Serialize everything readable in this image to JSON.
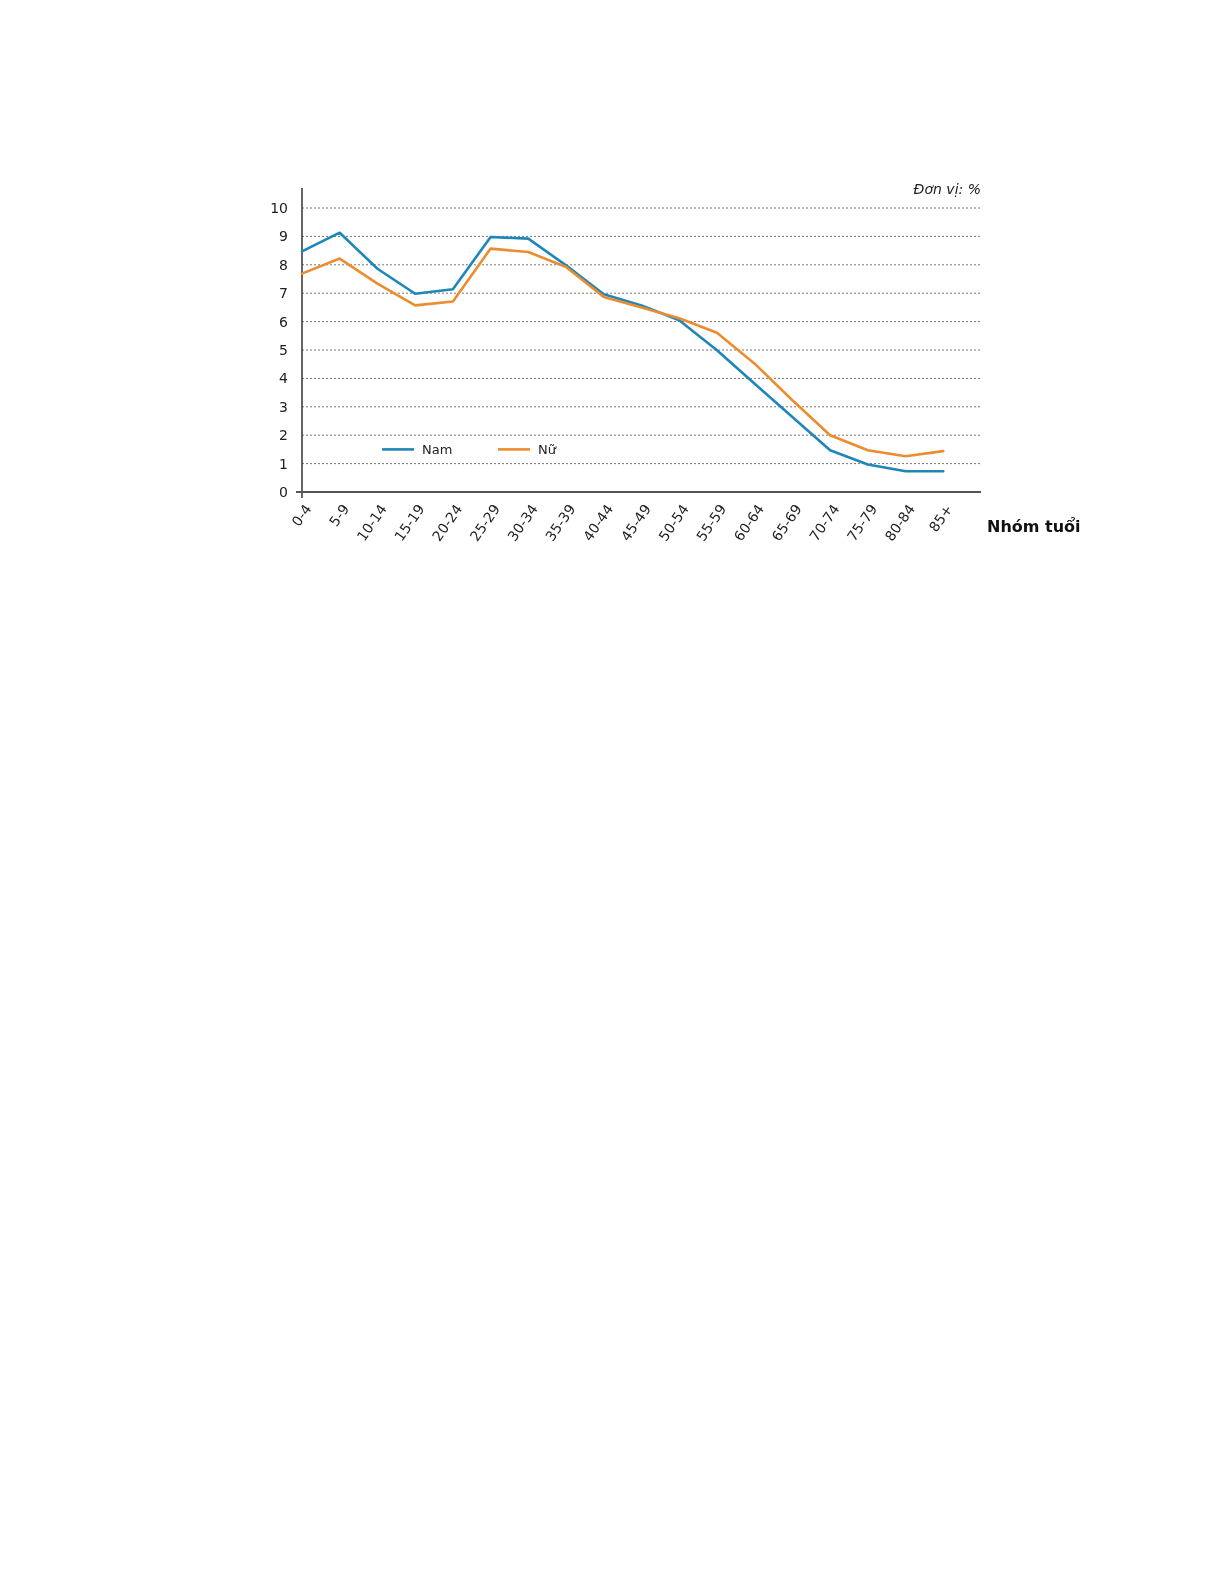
{
  "chart_data": {
    "type": "line",
    "xlabel": "Nhóm tuổi",
    "annotations": [
      "Đơn vị: %"
    ],
    "categories": [
      "0-4",
      "5-9",
      "10-14",
      "15-19",
      "20-24",
      "25-29",
      "30-34",
      "35-39",
      "40-44",
      "45-49",
      "50-54",
      "55-59",
      "60-64",
      "65-69",
      "70-74",
      "75-79",
      "80-84",
      "85+"
    ],
    "series": [
      {
        "name": "Nam",
        "color": "#1f86b8",
        "values": [
          8.47,
          9.13,
          7.86,
          6.98,
          7.14,
          8.98,
          8.92,
          7.98,
          6.96,
          6.57,
          6.05,
          4.99,
          3.81,
          2.64,
          1.47,
          0.97,
          0.73,
          0.73
        ]
      },
      {
        "name": "Nữ",
        "color": "#ec8c2e",
        "values": [
          7.69,
          8.22,
          7.34,
          6.57,
          6.71,
          8.57,
          8.45,
          7.92,
          6.87,
          6.5,
          6.12,
          5.61,
          4.52,
          3.23,
          2.0,
          1.47,
          1.26,
          1.44
        ]
      }
    ],
    "ylim": [
      0,
      10
    ],
    "yticks": [
      0,
      1,
      2,
      3,
      4,
      5,
      6,
      7,
      8,
      9,
      10
    ],
    "grid": "y",
    "legend": "bottom left",
    "marker": "none",
    "line_style": "solid"
  }
}
